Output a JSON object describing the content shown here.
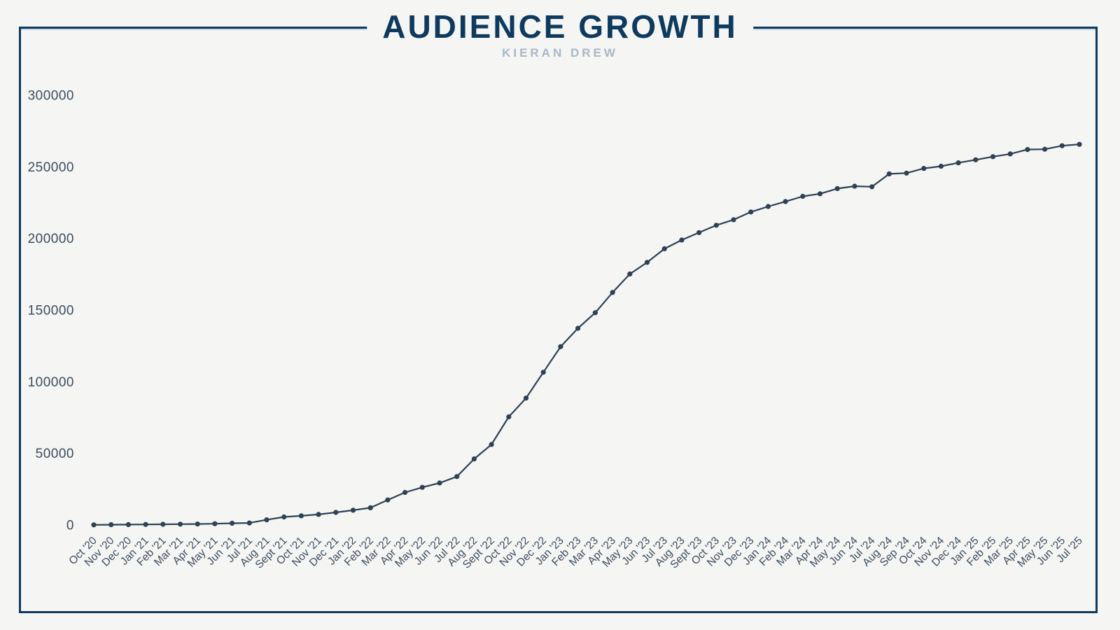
{
  "header": {
    "title": "AUDIENCE GROWTH",
    "subtitle": "KIERAN DREW"
  },
  "colors": {
    "background": "#f5f5f3",
    "frame_border": "#0d3a5e",
    "frame_top_highlight": "#c4d7e6",
    "title": "#0d3a5e",
    "subtitle": "#a7b8c8",
    "line": "#2e4156",
    "tick_labels": "#3b4d60"
  },
  "chart_data": {
    "type": "line",
    "title": "AUDIENCE GROWTH",
    "subtitle": "KIERAN DREW",
    "categories": [
      "Oct '20",
      "Nov '20",
      "Dec '20",
      "Jan '21",
      "Feb '21",
      "Mar '21",
      "Apr '21",
      "May '21",
      "Jun '21",
      "Jul '21",
      "Aug '21",
      "Sept '21",
      "Oct '21",
      "Nov '21",
      "Dec '21",
      "Jan '22",
      "Feb '22",
      "Mar '22",
      "Apr '22",
      "May '22",
      "Jun '22",
      "Jul '22",
      "Aug '22",
      "Sept '22",
      "Oct '22",
      "Nov '22",
      "Dec '22",
      "Jan '23",
      "Feb '23",
      "Mar '23",
      "Apr '23",
      "May '23",
      "Jun '23",
      "Jul '23",
      "Aug '23",
      "Sept '23",
      "Oct '23",
      "Nov '23",
      "Dec '23",
      "Jan '24",
      "Feb '24",
      "Mar '24",
      "Apr '24",
      "May '24",
      "Jun '24",
      "Jul '24",
      "Aug '24",
      "Sep '24",
      "Oct '24",
      "Nov '24",
      "Dec '24",
      "Jan '25",
      "Feb '25",
      "Mar '25",
      "Apr '25",
      "May '25",
      "Jun '25",
      "Jul '25"
    ],
    "values": [
      100,
      200,
      300,
      400,
      500,
      600,
      700,
      900,
      1200,
      1400,
      3600,
      5600,
      6400,
      7400,
      8800,
      10300,
      12000,
      17500,
      22700,
      26300,
      29300,
      33800,
      46100,
      56200,
      75500,
      88600,
      106600,
      124500,
      137300,
      148200,
      162300,
      175200,
      183300,
      192800,
      198900,
      204100,
      209200,
      213100,
      218500,
      222300,
      225800,
      229400,
      231200,
      234800,
      236500,
      236100,
      245100,
      245600,
      248900,
      250400,
      252800,
      254900,
      257100,
      259000,
      262100,
      262300,
      264700,
      265700
    ],
    "xlabel": "",
    "ylabel": "",
    "ylim": [
      0,
      300000
    ],
    "yticks": [
      0,
      50000,
      100000,
      150000,
      200000,
      250000,
      300000
    ],
    "grid": false,
    "legend": false,
    "x_label_rotation": -45,
    "marker": "circle"
  }
}
